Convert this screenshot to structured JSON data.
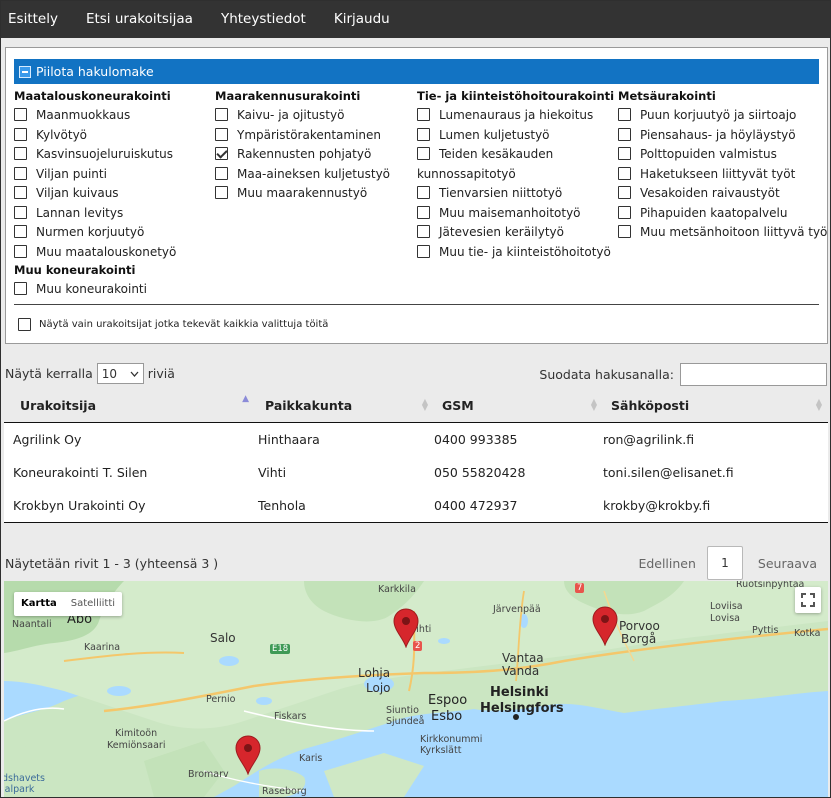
{
  "nav": [
    "Esittely",
    "Etsi urakoitsijaa",
    "Yhteystiedot",
    "Kirjaudu"
  ],
  "search_form": {
    "toggle_label": "Piilota hakulomake",
    "columns": [
      {
        "title": "Maatalouskoneurakointi",
        "items": [
          {
            "label": "Maanmuokkaus",
            "checked": false
          },
          {
            "label": "Kylvötyö",
            "checked": false
          },
          {
            "label": "Kasvinsuojeluruiskutus",
            "checked": false
          },
          {
            "label": "Viljan puinti",
            "checked": false
          },
          {
            "label": "Viljan kuivaus",
            "checked": false
          },
          {
            "label": "Lannan levitys",
            "checked": false
          },
          {
            "label": "Nurmen korjuutyö",
            "checked": false
          },
          {
            "label": "Muu maatalouskonetyö",
            "checked": false
          }
        ]
      },
      {
        "title": "Maarakennusurakointi",
        "items": [
          {
            "label": "Kaivu- ja ojitustyö",
            "checked": false
          },
          {
            "label": "Ympäristörakentaminen",
            "checked": false
          },
          {
            "label": "Rakennusten pohjatyö",
            "checked": true
          },
          {
            "label": "Maa-aineksen kuljetustyö",
            "checked": false
          },
          {
            "label": "Muu maarakennustyö",
            "checked": false
          }
        ]
      },
      {
        "title": "Tie- ja kiinteistöhoitourakointi",
        "items": [
          {
            "label": "Lumenauraus ja hiekoitus",
            "checked": false
          },
          {
            "label": "Lumen kuljetustyö",
            "checked": false
          },
          {
            "label": "Teiden kesäkauden kunnossapitotyö",
            "checked": false
          },
          {
            "label": "Tienvarsien niittotyö",
            "checked": false
          },
          {
            "label": "Muu maisemanhoitotyö",
            "checked": false
          },
          {
            "label": "Jätevesien keräilytyö",
            "checked": false
          },
          {
            "label": "Muu tie- ja kiinteistöhoitotyö",
            "checked": false
          }
        ]
      },
      {
        "title": "Metsäurakointi",
        "items": [
          {
            "label": "Puun korjuutyö ja siirtoajo",
            "checked": false
          },
          {
            "label": "Piensahaus- ja höyläystyö",
            "checked": false
          },
          {
            "label": "Polttopuiden valmistus",
            "checked": false
          },
          {
            "label": "Haketukseen liittyvät työt",
            "checked": false
          },
          {
            "label": "Vesakoiden raivaustyöt",
            "checked": false
          },
          {
            "label": "Pihapuiden kaatopalvelu",
            "checked": false
          },
          {
            "label": "Muu metsänhoitoon liittyvä työ",
            "checked": false
          }
        ]
      }
    ],
    "extra_group": {
      "title": "Muu koneurakointi",
      "items": [
        {
          "label": "Muu koneurakointi",
          "checked": false
        }
      ]
    },
    "only_all_label": "Näytä vain urakoitsijat jotka tekevät kaikkia valittuja töitä"
  },
  "table_controls": {
    "show_prefix": "Näytä kerralla",
    "page_size": "10",
    "show_suffix": "riviä",
    "filter_label": "Suodata hakusanalla:",
    "filter_value": ""
  },
  "table": {
    "headers": [
      "Urakoitsija",
      "Paikkakunta",
      "GSM",
      "Sähköposti"
    ],
    "rows": [
      [
        "Agrilink Oy",
        "Hinthaara",
        "0400 993385",
        "ron@agrilink.fi"
      ],
      [
        "Koneurakointi T. Silen",
        "Vihti",
        "050 55820428",
        "toni.silen@elisanet.fi"
      ],
      [
        "Krokbyn Urakointi Oy",
        "Tenhola",
        "0400 472937",
        "krokby@krokby.fi"
      ]
    ]
  },
  "pagination": {
    "info": "Näytetään rivit 1 - 3 (yhteensä 3 )",
    "previous": "Edellinen",
    "current": "1",
    "next": "Seuraava"
  },
  "map": {
    "type_buttons": [
      "Kartta",
      "Satelliitti"
    ],
    "labels": [
      "Karkkila",
      "Järvenpää",
      "Åbo",
      "Naantali",
      "Kaarina",
      "Salo",
      "Lohja",
      "Lojo",
      "Vantaa",
      "Vanda",
      "Espoo",
      "Esbo",
      "Helsinki",
      "Helsingfors",
      "Porvoo",
      "Borgå",
      "Loviisa",
      "Lovisa",
      "Pyttis",
      "Kotka",
      "Ruotsinpyhtää",
      "Pernio",
      "Kimitoön",
      "Kemiönsaari",
      "Fiskars",
      "Karis",
      "Siuntio",
      "Sjundeå",
      "Kirkkonummi",
      "Kyrkslätt",
      "Bromarv",
      "Raseborg",
      "dshavets",
      "ialpark",
      "E18",
      "2",
      "6",
      "7",
      "Vihti"
    ],
    "pin_color": "#d6262c"
  }
}
